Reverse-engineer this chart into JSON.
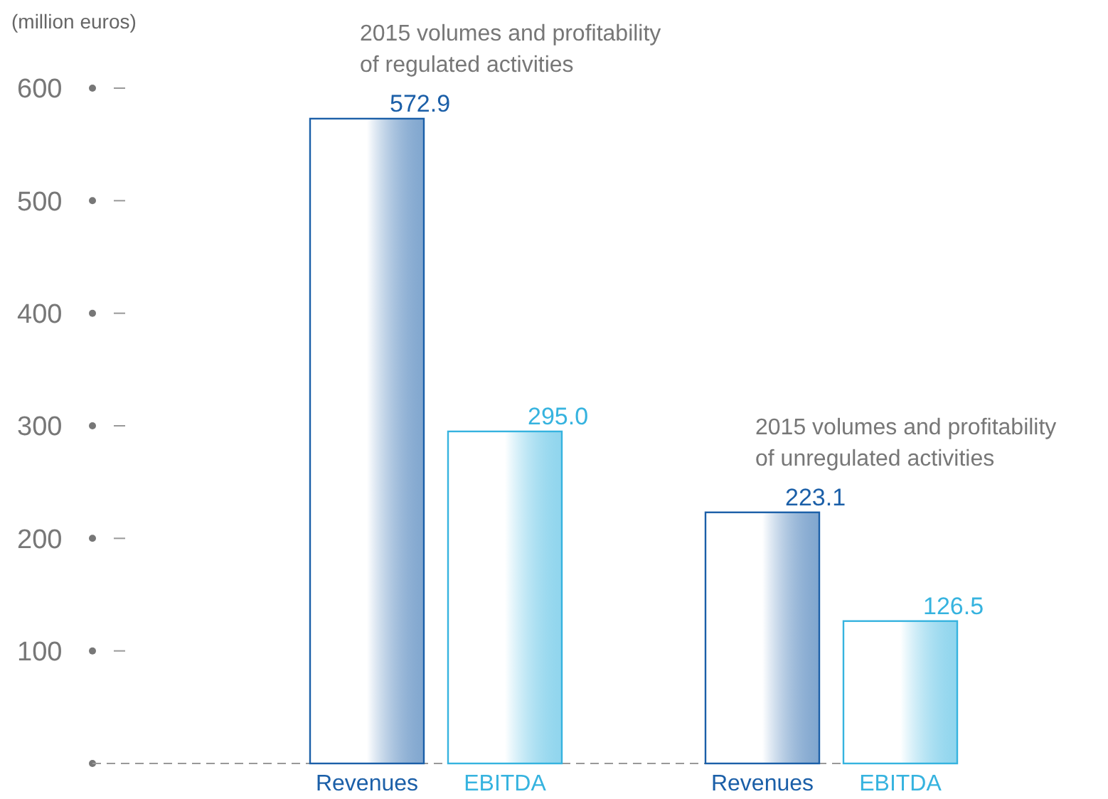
{
  "chart_data": {
    "type": "bar",
    "ylabel": "(million euros)",
    "categories": [
      null,
      null
    ],
    "series": [
      {
        "name": "Revenues",
        "color": "#1b5fa8",
        "values": [
          572.9,
          223.1
        ],
        "value_labels": [
          "572.9",
          "223.1"
        ]
      },
      {
        "name": "EBITDA",
        "color": "#36b3df",
        "values": [
          295.0,
          126.5
        ],
        "value_labels": [
          "295.0",
          "126.5"
        ]
      }
    ],
    "ylim": [
      0,
      600
    ],
    "yticks": [
      {
        "value": 0,
        "label": null
      },
      100,
      200,
      300,
      400,
      500,
      600
    ],
    "annotations": [
      "2015 volumes and profitability\nof regulated activities",
      "2015 volumes and profitability\nof unregulated activities"
    ]
  }
}
